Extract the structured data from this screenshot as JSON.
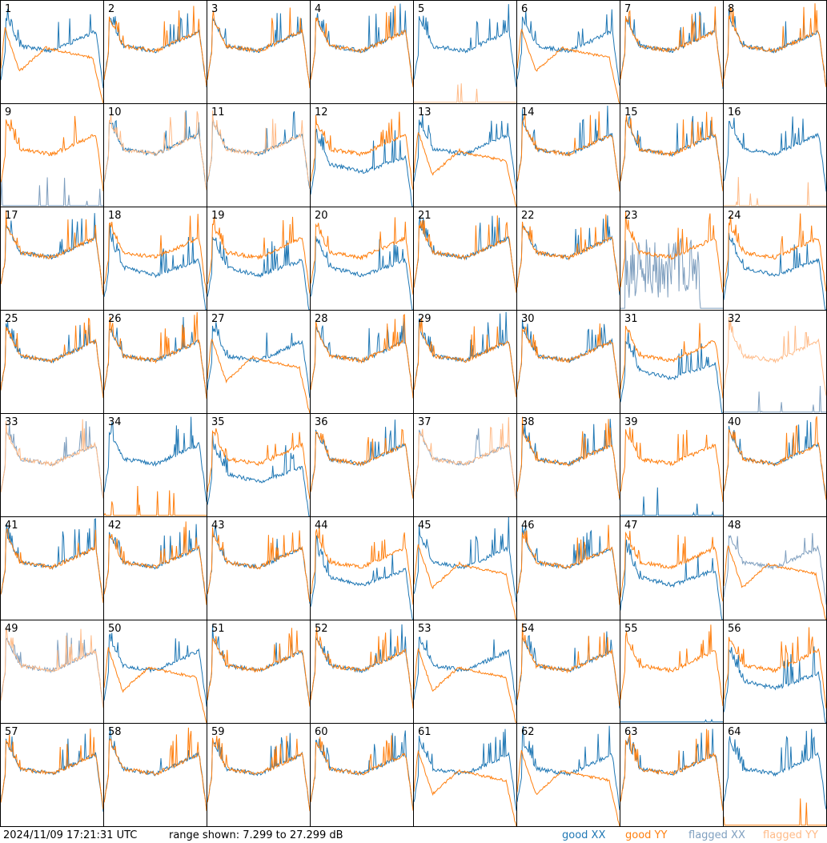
{
  "footer": {
    "timestamp": "2024/11/09 17:21:31 UTC",
    "range_text": "range shown: 7.299 to 27.299 dB"
  },
  "legend": [
    {
      "key": "good_xx",
      "label": "good XX",
      "color": "#1f77b4"
    },
    {
      "key": "good_yy",
      "label": "good YY",
      "color": "#ff7f0e"
    },
    {
      "key": "flagged_xx",
      "label": "flagged XX",
      "color": "#7f9fbf"
    },
    {
      "key": "flagged_yy",
      "label": "flagged YY",
      "color": "#ffbb88"
    }
  ],
  "chart_data": {
    "type": "line",
    "ylim": [
      7.299,
      27.299
    ],
    "grid": false,
    "rows": 8,
    "cols": 8,
    "panels": [
      {
        "label": "1",
        "xx": "good",
        "yy": "good",
        "shape": "dip"
      },
      {
        "label": "2",
        "xx": "good",
        "yy": "good",
        "shape": "normal"
      },
      {
        "label": "3",
        "xx": "good",
        "yy": "good",
        "shape": "normal"
      },
      {
        "label": "4",
        "xx": "good",
        "yy": "good",
        "shape": "normal"
      },
      {
        "label": "5",
        "xx": "good",
        "yy": "flagged",
        "shape": "dead_yy"
      },
      {
        "label": "6",
        "xx": "good",
        "yy": "good",
        "shape": "dip"
      },
      {
        "label": "7",
        "xx": "good",
        "yy": "good",
        "shape": "normal"
      },
      {
        "label": "8",
        "xx": "good",
        "yy": "good",
        "shape": "normal"
      },
      {
        "label": "9",
        "xx": "flagged",
        "yy": "good",
        "shape": "dead_xx"
      },
      {
        "label": "10",
        "xx": "good",
        "yy": "flagged",
        "shape": "normal"
      },
      {
        "label": "11",
        "xx": "good",
        "yy": "flagged",
        "shape": "normal"
      },
      {
        "label": "12",
        "xx": "good",
        "yy": "good",
        "shape": "split"
      },
      {
        "label": "13",
        "xx": "good",
        "yy": "good",
        "shape": "dip"
      },
      {
        "label": "14",
        "xx": "good",
        "yy": "good",
        "shape": "normal"
      },
      {
        "label": "15",
        "xx": "good",
        "yy": "good",
        "shape": "normal"
      },
      {
        "label": "16",
        "xx": "good",
        "yy": "flagged",
        "shape": "dead_yy"
      },
      {
        "label": "17",
        "xx": "good",
        "yy": "good",
        "shape": "normal"
      },
      {
        "label": "18",
        "xx": "good",
        "yy": "good",
        "shape": "split"
      },
      {
        "label": "19",
        "xx": "good",
        "yy": "good",
        "shape": "split"
      },
      {
        "label": "20",
        "xx": "good",
        "yy": "good",
        "shape": "split"
      },
      {
        "label": "21",
        "xx": "good",
        "yy": "good",
        "shape": "normal"
      },
      {
        "label": "22",
        "xx": "good",
        "yy": "good",
        "shape": "normal"
      },
      {
        "label": "23",
        "xx": "flagged",
        "yy": "good",
        "shape": "noisy_xx"
      },
      {
        "label": "24",
        "xx": "good",
        "yy": "good",
        "shape": "split"
      },
      {
        "label": "25",
        "xx": "good",
        "yy": "good",
        "shape": "normal"
      },
      {
        "label": "26",
        "xx": "good",
        "yy": "good",
        "shape": "normal"
      },
      {
        "label": "27",
        "xx": "good",
        "yy": "good",
        "shape": "dip"
      },
      {
        "label": "28",
        "xx": "good",
        "yy": "good",
        "shape": "normal"
      },
      {
        "label": "29",
        "xx": "good",
        "yy": "good",
        "shape": "normal"
      },
      {
        "label": "30",
        "xx": "good",
        "yy": "good",
        "shape": "normal"
      },
      {
        "label": "31",
        "xx": "good",
        "yy": "good",
        "shape": "split"
      },
      {
        "label": "32",
        "xx": "flagged",
        "yy": "flagged",
        "shape": "dead_xx"
      },
      {
        "label": "33",
        "xx": "flagged",
        "yy": "flagged",
        "shape": "normal"
      },
      {
        "label": "34",
        "xx": "good",
        "yy": "good",
        "shape": "dead_yy"
      },
      {
        "label": "35",
        "xx": "good",
        "yy": "good",
        "shape": "split"
      },
      {
        "label": "36",
        "xx": "good",
        "yy": "good",
        "shape": "normal"
      },
      {
        "label": "37",
        "xx": "flagged",
        "yy": "flagged",
        "shape": "normal"
      },
      {
        "label": "38",
        "xx": "good",
        "yy": "good",
        "shape": "normal"
      },
      {
        "label": "39",
        "xx": "good",
        "yy": "good",
        "shape": "dead_xx"
      },
      {
        "label": "40",
        "xx": "good",
        "yy": "good",
        "shape": "normal"
      },
      {
        "label": "41",
        "xx": "good",
        "yy": "good",
        "shape": "normal"
      },
      {
        "label": "42",
        "xx": "good",
        "yy": "good",
        "shape": "normal"
      },
      {
        "label": "43",
        "xx": "good",
        "yy": "good",
        "shape": "normal"
      },
      {
        "label": "44",
        "xx": "good",
        "yy": "good",
        "shape": "split"
      },
      {
        "label": "45",
        "xx": "good",
        "yy": "good",
        "shape": "dip"
      },
      {
        "label": "46",
        "xx": "good",
        "yy": "good",
        "shape": "normal"
      },
      {
        "label": "47",
        "xx": "good",
        "yy": "good",
        "shape": "split"
      },
      {
        "label": "48",
        "xx": "flagged",
        "yy": "good",
        "shape": "dip"
      },
      {
        "label": "49",
        "xx": "flagged",
        "yy": "flagged",
        "shape": "normal"
      },
      {
        "label": "50",
        "xx": "good",
        "yy": "good",
        "shape": "dip"
      },
      {
        "label": "51",
        "xx": "good",
        "yy": "good",
        "shape": "normal"
      },
      {
        "label": "52",
        "xx": "good",
        "yy": "good",
        "shape": "normal"
      },
      {
        "label": "53",
        "xx": "good",
        "yy": "good",
        "shape": "dip"
      },
      {
        "label": "54",
        "xx": "good",
        "yy": "good",
        "shape": "normal"
      },
      {
        "label": "55",
        "xx": "good",
        "yy": "good",
        "shape": "dead_xx"
      },
      {
        "label": "56",
        "xx": "good",
        "yy": "good",
        "shape": "split"
      },
      {
        "label": "57",
        "xx": "good",
        "yy": "good",
        "shape": "normal"
      },
      {
        "label": "58",
        "xx": "good",
        "yy": "good",
        "shape": "normal"
      },
      {
        "label": "59",
        "xx": "good",
        "yy": "good",
        "shape": "normal"
      },
      {
        "label": "60",
        "xx": "good",
        "yy": "good",
        "shape": "normal"
      },
      {
        "label": "61",
        "xx": "good",
        "yy": "good",
        "shape": "dip"
      },
      {
        "label": "62",
        "xx": "good",
        "yy": "good",
        "shape": "dip"
      },
      {
        "label": "63",
        "xx": "good",
        "yy": "good",
        "shape": "normal"
      },
      {
        "label": "64",
        "xx": "good",
        "yy": "good",
        "shape": "dead_yy"
      }
    ]
  }
}
